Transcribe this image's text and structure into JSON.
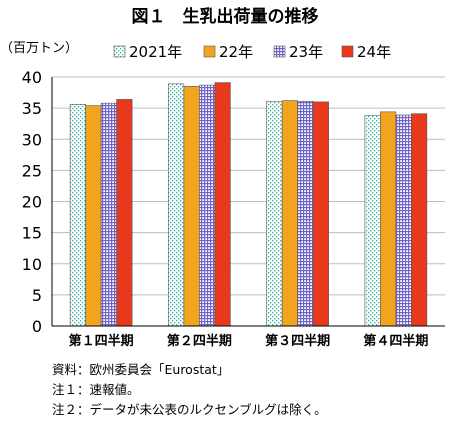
{
  "chart_data": {
    "type": "bar",
    "title": "図１　生乳出荷量の推移",
    "unit_label": "（百万トン）",
    "categories": [
      "第１四半期",
      "第２四半期",
      "第３四半期",
      "第４四半期"
    ],
    "series": [
      {
        "name": "2021年",
        "values": [
          35.6,
          38.9,
          36.1,
          33.8
        ],
        "color": "#ffffff",
        "pattern": "dots"
      },
      {
        "name": "22年",
        "values": [
          35.4,
          38.5,
          36.2,
          34.4
        ],
        "color": "#f2a41f",
        "pattern": "solid"
      },
      {
        "name": "23年",
        "values": [
          35.8,
          38.7,
          36.1,
          33.9
        ],
        "color": "#8a7fd6",
        "pattern": "grid"
      },
      {
        "name": "24年",
        "values": [
          36.4,
          39.1,
          36.0,
          34.1
        ],
        "color": "#e8391d",
        "pattern": "solid"
      }
    ],
    "ylim": [
      0,
      40
    ],
    "yticks": [
      0,
      5,
      10,
      15,
      20,
      25,
      30,
      35,
      40
    ],
    "grid": true,
    "legend_position": "top"
  },
  "notes": {
    "source": "資料：欧州委員会「Eurostat」",
    "note1": "注１：速報値。",
    "note2": "注２：データが未公表のルクセンブルグは除く。"
  }
}
